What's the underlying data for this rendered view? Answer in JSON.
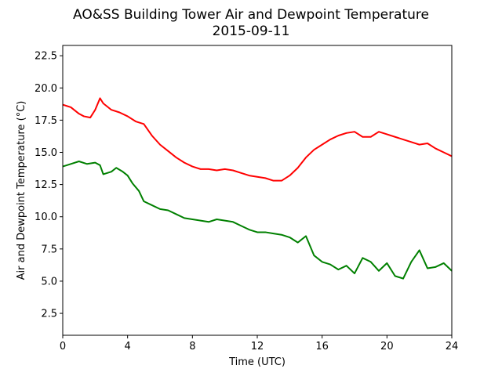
{
  "chart_data": {
    "type": "line",
    "title": "AO&SS Building Tower Air and Dewpoint Temperature",
    "subtitle": "2015-09-11",
    "xlabel": "Time (UTC)",
    "ylabel": "Air and Dewpoint Temperature (°C)",
    "xlim": [
      0,
      24
    ],
    "ylim": [
      0.8,
      23.3
    ],
    "xticks": [
      0,
      4,
      8,
      12,
      16,
      20,
      24
    ],
    "yticks": [
      2.5,
      5.0,
      7.5,
      10.0,
      12.5,
      15.0,
      17.5,
      20.0,
      22.5
    ],
    "grid": false,
    "series": [
      {
        "color": "#ff0000",
        "x": [
          0,
          0.5,
          1,
          1.3,
          1.7,
          2,
          2.3,
          2.5,
          3,
          3.5,
          4,
          4.5,
          5,
          5.5,
          6,
          6.5,
          7,
          7.5,
          8,
          8.5,
          9,
          9.5,
          10,
          10.5,
          11,
          11.5,
          12,
          12.5,
          13,
          13.5,
          14,
          14.5,
          15,
          15.5,
          16,
          16.5,
          17,
          17.5,
          18,
          18.5,
          19,
          19.5,
          20,
          20.5,
          21,
          21.5,
          22,
          22.5,
          23,
          23.5,
          24
        ],
        "y": [
          18.7,
          18.5,
          18.0,
          17.8,
          17.7,
          18.3,
          19.2,
          18.8,
          18.3,
          18.1,
          17.8,
          17.4,
          17.2,
          16.3,
          15.6,
          15.1,
          14.6,
          14.2,
          13.9,
          13.7,
          13.7,
          13.6,
          13.7,
          13.6,
          13.4,
          13.2,
          13.1,
          13.0,
          12.8,
          12.8,
          13.2,
          13.8,
          14.6,
          15.2,
          15.6,
          16.0,
          16.3,
          16.5,
          16.6,
          16.2,
          16.2,
          16.6,
          16.4,
          16.2,
          16.0,
          15.8,
          15.6,
          15.7,
          15.3,
          15.0,
          14.7
        ]
      },
      {
        "color": "#008000",
        "x": [
          0,
          0.5,
          1,
          1.5,
          2,
          2.3,
          2.5,
          3,
          3.3,
          3.7,
          4,
          4.3,
          4.7,
          5,
          5.5,
          6,
          6.5,
          7,
          7.5,
          8,
          8.5,
          9,
          9.5,
          10,
          10.5,
          11,
          11.5,
          12,
          12.5,
          13,
          13.5,
          14,
          14.5,
          15,
          15.5,
          16,
          16.5,
          17,
          17.5,
          18,
          18.5,
          19,
          19.5,
          20,
          20.5,
          21,
          21.5,
          22,
          22.5,
          23,
          23.5,
          24
        ],
        "y": [
          13.9,
          14.1,
          14.3,
          14.1,
          14.2,
          14.0,
          13.3,
          13.5,
          13.8,
          13.5,
          13.2,
          12.6,
          12.0,
          11.2,
          10.9,
          10.6,
          10.5,
          10.2,
          9.9,
          9.8,
          9.7,
          9.6,
          9.8,
          9.7,
          9.6,
          9.3,
          9.0,
          8.8,
          8.8,
          8.7,
          8.6,
          8.4,
          8.0,
          8.5,
          7.0,
          6.5,
          6.3,
          5.9,
          6.2,
          5.6,
          6.8,
          6.5,
          5.8,
          6.4,
          5.4,
          5.2,
          6.5,
          7.4,
          6.0,
          6.1,
          6.4,
          5.8
        ]
      }
    ]
  }
}
